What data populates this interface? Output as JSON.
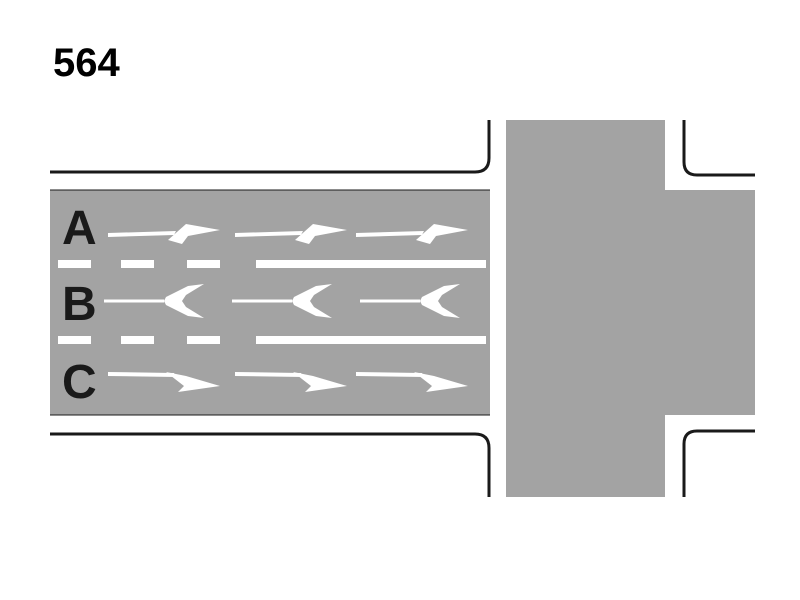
{
  "figure_number": "564",
  "lanes": [
    {
      "letter": "A",
      "marking": "left-turn-arrow"
    },
    {
      "letter": "B",
      "marking": "straight-ahead-arrow"
    },
    {
      "letter": "C",
      "marking": "right-turn-arrow"
    }
  ],
  "colors": {
    "road": "#a3a3a3",
    "marking": "#ffffff",
    "kerb": "#1a1a1a",
    "letter": "#1a1a1a"
  }
}
